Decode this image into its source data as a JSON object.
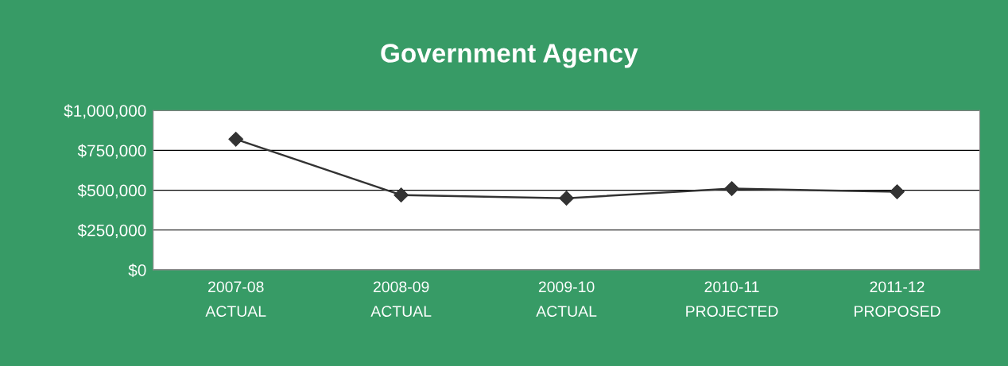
{
  "chart_data": {
    "type": "line",
    "title": "Government Agency",
    "categories": [
      "2007-08\nACTUAL",
      "2008-09\nACTUAL",
      "2009-10\nACTUAL",
      "2010-11\nPROJECTED",
      "2011-12\nPROPOSED"
    ],
    "values": [
      820000,
      470000,
      450000,
      510000,
      490000
    ],
    "color": "#333333",
    "marker": "diamond",
    "line_style": "solid",
    "ylim": [
      0,
      1000000
    ],
    "yticks": [
      {
        "value": 0,
        "label": "$0"
      },
      {
        "value": 250000,
        "label": "$250,000"
      },
      {
        "value": 500000,
        "label": "$500,000"
      },
      {
        "value": 750000,
        "label": "$750,000"
      },
      {
        "value": 1000000,
        "label": "$1,000,000"
      }
    ],
    "grid": "y",
    "legend": false
  }
}
